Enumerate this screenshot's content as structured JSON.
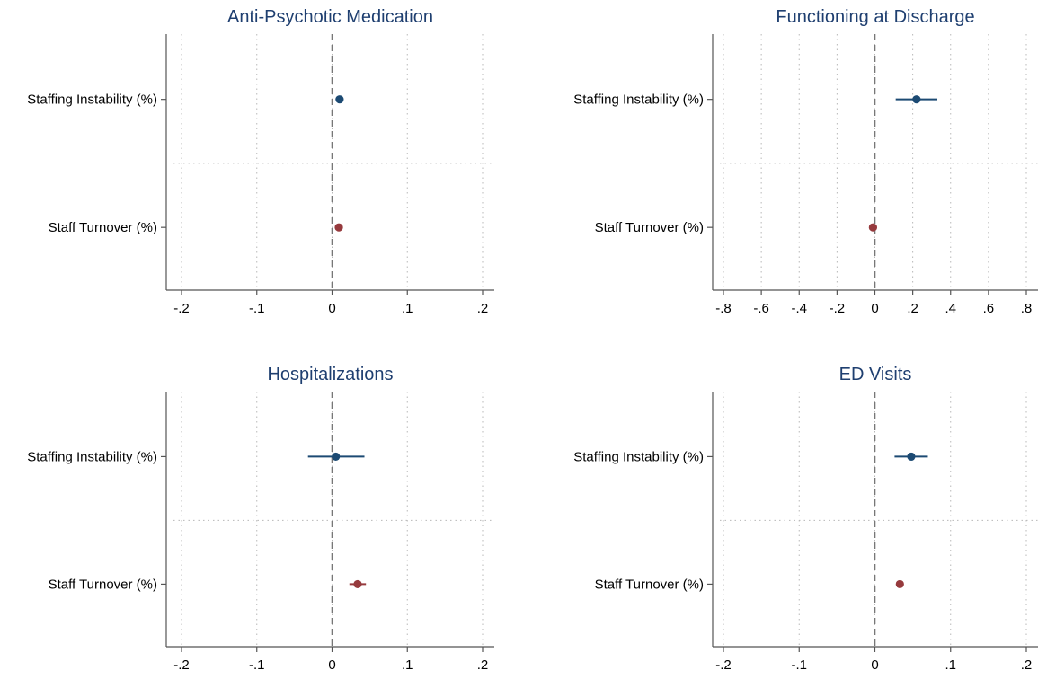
{
  "colors": {
    "title": "#1f3f70",
    "staffing_instability": "#1c4a73",
    "staff_turnover": "#963a3d",
    "zero_line": "#777777"
  },
  "chart_data": [
    {
      "type": "scatter",
      "subtype": "coefficient-plot",
      "title": "Anti-Psychotic Medication",
      "xlim": [
        -0.2,
        0.2
      ],
      "xticks": [
        "-.2",
        "-.1",
        "0",
        ".1",
        ".2"
      ],
      "xtick_values": [
        -0.2,
        -0.1,
        0,
        0.1,
        0.2
      ],
      "reference_line": 0,
      "grid": true,
      "rows": [
        {
          "label": "Staffing Instability (%)",
          "estimate": 0.01,
          "ci_low": 0.005,
          "ci_high": 0.015,
          "color": "#1c4a73"
        },
        {
          "label": "Staff Turnover (%)",
          "estimate": 0.009,
          "ci_low": 0.006,
          "ci_high": 0.012,
          "color": "#963a3d"
        }
      ]
    },
    {
      "type": "scatter",
      "subtype": "coefficient-plot",
      "title": "Functioning at Discharge",
      "xlim": [
        -0.8,
        0.8
      ],
      "xticks": [
        "-.8",
        "-.6",
        "-.4",
        "-.2",
        "0",
        ".2",
        ".4",
        ".6",
        ".8"
      ],
      "xtick_values": [
        -0.8,
        -0.6,
        -0.4,
        -0.2,
        0,
        0.2,
        0.4,
        0.6,
        0.8
      ],
      "reference_line": 0,
      "grid": true,
      "rows": [
        {
          "label": "Staffing Instability (%)",
          "estimate": 0.22,
          "ci_low": 0.11,
          "ci_high": 0.33,
          "color": "#1c4a73"
        },
        {
          "label": "Staff Turnover (%)",
          "estimate": -0.01,
          "ci_low": -0.03,
          "ci_high": 0.01,
          "color": "#963a3d"
        }
      ]
    },
    {
      "type": "scatter",
      "subtype": "coefficient-plot",
      "title": "Hospitalizations",
      "xlim": [
        -0.2,
        0.2
      ],
      "xticks": [
        "-.2",
        "-.1",
        "0",
        ".1",
        ".2"
      ],
      "xtick_values": [
        -0.2,
        -0.1,
        0,
        0.1,
        0.2
      ],
      "reference_line": 0,
      "grid": true,
      "rows": [
        {
          "label": "Staffing Instability (%)",
          "estimate": 0.005,
          "ci_low": -0.032,
          "ci_high": 0.043,
          "color": "#1c4a73"
        },
        {
          "label": "Staff Turnover (%)",
          "estimate": 0.034,
          "ci_low": 0.023,
          "ci_high": 0.045,
          "color": "#963a3d"
        }
      ]
    },
    {
      "type": "scatter",
      "subtype": "coefficient-plot",
      "title": "ED Visits",
      "xlim": [
        -0.2,
        0.2
      ],
      "xticks": [
        "-.2",
        "-.1",
        "0",
        ".1",
        ".2"
      ],
      "xtick_values": [
        -0.2,
        -0.1,
        0,
        0.1,
        0.2
      ],
      "reference_line": 0,
      "grid": true,
      "rows": [
        {
          "label": "Staffing Instability (%)",
          "estimate": 0.048,
          "ci_low": 0.026,
          "ci_high": 0.07,
          "color": "#1c4a73"
        },
        {
          "label": "Staff Turnover (%)",
          "estimate": 0.033,
          "ci_low": 0.03,
          "ci_high": 0.036,
          "color": "#963a3d"
        }
      ]
    }
  ]
}
